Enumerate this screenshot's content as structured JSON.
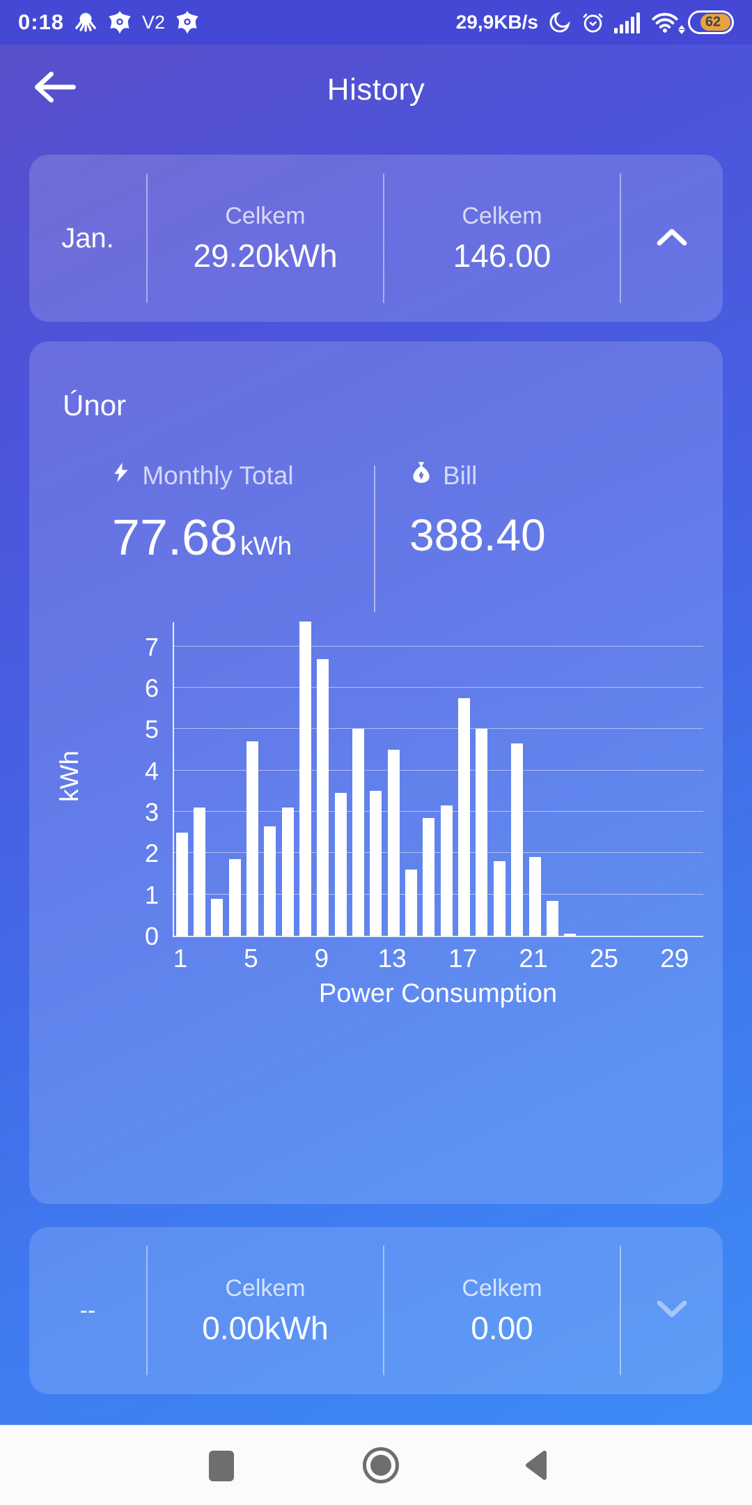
{
  "status_bar": {
    "time": "0:18",
    "left_icons": [
      "octopus-icon",
      "avast-icon",
      "v2ray-icon",
      "avast-icon"
    ],
    "v2_label": "V2",
    "net_speed": "29,9KB/s",
    "right_icons": [
      "moon-icon",
      "alarm-icon",
      "signal-icon",
      "wifi-icon",
      "battery-icon"
    ],
    "battery_percent": "62"
  },
  "header": {
    "title": "History",
    "back_icon": "arrow-left-icon"
  },
  "cards": {
    "previous": {
      "month": "Jan.",
      "energy_label": "Celkem",
      "energy_value": "29.20kWh",
      "bill_label": "Celkem",
      "bill_value": "146.00",
      "chevron": "chevron-up-icon"
    },
    "current": {
      "month": "Únor",
      "monthly_total_label": "Monthly Total",
      "monthly_total_value": "77.68",
      "monthly_total_unit": "kWh",
      "bill_label": "Bill",
      "bill_value": "388.40"
    },
    "next": {
      "month": "--",
      "energy_label": "Celkem",
      "energy_value": "0.00kWh",
      "bill_label": "Celkem",
      "bill_value": "0.00",
      "chevron": "chevron-down-icon"
    }
  },
  "chart_data": {
    "type": "bar",
    "title": "",
    "xlabel": "Power Consumption",
    "ylabel": "kWh",
    "x": [
      1,
      2,
      3,
      4,
      5,
      6,
      7,
      8,
      9,
      10,
      11,
      12,
      13,
      14,
      15,
      16,
      17,
      18,
      19,
      20,
      21,
      22,
      23,
      24,
      25,
      26,
      27,
      28,
      29
    ],
    "values": [
      2.5,
      3.1,
      0.9,
      1.85,
      4.7,
      2.65,
      3.1,
      7.6,
      6.7,
      3.45,
      5.0,
      3.5,
      4.5,
      1.6,
      2.85,
      3.15,
      5.75,
      5.0,
      1.8,
      4.65,
      1.9,
      0.85,
      0.05,
      0,
      0,
      0,
      0,
      0,
      0
    ],
    "x_ticks": [
      1,
      5,
      9,
      13,
      17,
      21,
      25,
      29
    ],
    "y_ticks": [
      0,
      1,
      2,
      3,
      4,
      5,
      6,
      7
    ],
    "ylim": [
      0,
      7.62
    ],
    "grid": true,
    "legend": null,
    "bar_color": "#ffffff"
  },
  "colors": {
    "background_top": "#5a4fc8",
    "background_bottom": "#3d8ef8",
    "status_bar": "#4448d4",
    "card_overlay": "rgba(255,255,255,0.16)",
    "battery_fill": "#e8a23f",
    "bar_color": "#ffffff",
    "nav_icon": "#6e6e6e"
  },
  "nav_bar": {
    "icons": [
      "recents-square-icon",
      "home-circle-icon",
      "back-triangle-icon"
    ]
  }
}
